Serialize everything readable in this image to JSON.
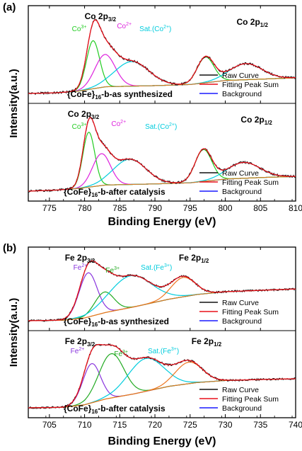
{
  "chart_data": [
    {
      "panel": "(a)",
      "type": "line",
      "xlabel": "Binding Energy (eV)",
      "ylabel": "Intensity(a.u.)",
      "xlim": [
        772,
        810
      ],
      "xticks": [
        775,
        780,
        785,
        790,
        795,
        800,
        805,
        810
      ],
      "legend_entries": [
        "Raw Curve",
        "Fitting Peak Sum",
        "Background"
      ],
      "legend_position": "bottom-right",
      "subplots": [
        {
          "label_prefix": "{CoFe}",
          "label_sub": "16",
          "label_suffix": "-b-as synthesized",
          "annotations": [
            {
              "text": "Co 2p",
              "sub": "3/2",
              "color": "#000000",
              "x": 780.0
            },
            {
              "text": "Co",
              "sup": "3+",
              "color": "#22cc22",
              "x": 778.2
            },
            {
              "text": "Co",
              "sup": "2+",
              "color": "#dd22dd",
              "x": 784.6
            },
            {
              "text": "Sat.(Co",
              "sup": "2+",
              "tail": ")",
              "color": "#00ccdd",
              "x": 787.8
            },
            {
              "text": "Co 2p",
              "sub": "1/2",
              "color": "#000000",
              "x": 801.6
            }
          ],
          "background": {
            "x": [
              772,
              776,
              779,
              783,
              790,
              795,
              800,
              805,
              810
            ],
            "y": [
              0.0,
              0.03,
              0.1,
              0.3,
              0.35,
              0.4,
              0.58,
              0.64,
              0.7
            ]
          },
          "peaks": [
            {
              "name": "Co3+",
              "center": 781.2,
              "fwhm": 2.2,
              "height": 2.15,
              "color": "#22cc22"
            },
            {
              "name": "Co2+",
              "center": 782.9,
              "fwhm": 3.4,
              "height": 1.45,
              "color": "#dd22dd"
            },
            {
              "name": "Sat.(Co2+)",
              "center": 786.7,
              "fwhm": 5.8,
              "height": 1.1,
              "color": "#00ccdd"
            },
            {
              "name": "Co 2p1/2 main",
              "center": 797.2,
              "fwhm": 2.8,
              "height": 1.15,
              "color": "#22cc22"
            },
            {
              "name": "Co 2p1/2 sat",
              "center": 802.9,
              "fwhm": 5.5,
              "height": 0.72,
              "color": "#00ccdd"
            }
          ]
        },
        {
          "label_prefix": "{CoFe}",
          "label_sub": "16",
          "label_suffix": "-b-after catalysis",
          "annotations": [
            {
              "text": "Co 2p",
              "sub": "3/2",
              "color": "#000000",
              "x": 777.6
            },
            {
              "text": "Co",
              "sup": "3+",
              "color": "#22cc22",
              "x": 778.2
            },
            {
              "text": "Co",
              "sup": "2+",
              "color": "#dd22dd",
              "x": 783.8
            },
            {
              "text": "Sat.(Co",
              "sup": "2+",
              "tail": ")",
              "color": "#00ccdd",
              "x": 788.6
            },
            {
              "text": "Co 2p",
              "sub": "1/2",
              "color": "#000000",
              "x": 802.2
            }
          ],
          "background": {
            "x": [
              772,
              776,
              779,
              783,
              790,
              795,
              800,
              805,
              810
            ],
            "y": [
              0.0,
              0.05,
              0.12,
              0.28,
              0.33,
              0.38,
              0.55,
              0.62,
              0.67
            ]
          },
          "peaks": [
            {
              "name": "Co3+",
              "center": 780.6,
              "fwhm": 2.0,
              "height": 2.5,
              "color": "#22cc22"
            },
            {
              "name": "Co2+",
              "center": 782.4,
              "fwhm": 3.0,
              "height": 1.45,
              "color": "#dd22dd"
            },
            {
              "name": "Sat.(Co2+)",
              "center": 786.4,
              "fwhm": 5.5,
              "height": 1.15,
              "color": "#00ccdd"
            },
            {
              "name": "Co 2p1/2 main",
              "center": 796.9,
              "fwhm": 2.8,
              "height": 1.45,
              "color": "#22cc22"
            },
            {
              "name": "Co 2p1/2 sat",
              "center": 802.6,
              "fwhm": 5.5,
              "height": 0.72,
              "color": "#00ccdd"
            }
          ]
        }
      ]
    },
    {
      "panel": "(b)",
      "type": "line",
      "xlabel": "Binding Energy (eV)",
      "ylabel": "Intensity(a.u.)",
      "xlim": [
        702,
        740
      ],
      "xticks": [
        705,
        710,
        715,
        720,
        725,
        730,
        735,
        740
      ],
      "legend_entries": [
        "Raw Curve",
        "Fitting Peak Sum",
        "Background"
      ],
      "legend_position": "bottom-right",
      "subplots": [
        {
          "label_prefix": "{CoFe}",
          "label_sub": "16",
          "label_suffix": "-b-as synthesized",
          "annotations": [
            {
              "text": "Fe 2p",
              "sub": "3/2",
              "color": "#000000",
              "x": 707.2
            },
            {
              "text": "Fe",
              "sup": "3+",
              "color": "#22aa22",
              "x": 713.0
            },
            {
              "text": "Sat.(Fe",
              "sup": "3+",
              "tail": ")",
              "color": "#00ccdd",
              "x": 718.0
            },
            {
              "text": "Fe 2p",
              "sub": "1/2",
              "color": "#000000",
              "x": 723.4
            },
            {
              "text": "Fe",
              "sup": "2+",
              "color": "#8833dd",
              "x": 708.4
            }
          ],
          "background": {
            "x": [
              702,
              707,
              710,
              713,
              717,
              722,
              726,
              730,
              735,
              740
            ],
            "y": [
              0.0,
              0.02,
              0.1,
              0.3,
              0.5,
              0.78,
              0.95,
              1.05,
              1.1,
              1.15
            ]
          },
          "peaks": [
            {
              "name": "Fe2+",
              "center": 710.5,
              "fwhm": 3.0,
              "height": 1.6,
              "color": "#8833dd"
            },
            {
              "name": "Fe3+",
              "center": 712.8,
              "fwhm": 3.2,
              "height": 0.75,
              "color": "#22aa22"
            },
            {
              "name": "Sat.(Fe3+)",
              "center": 716.5,
              "fwhm": 7.0,
              "height": 1.15,
              "color": "#00ccdd"
            },
            {
              "name": "Fe 2p1/2",
              "center": 724.0,
              "fwhm": 4.0,
              "height": 0.7,
              "color": "#ee7722"
            }
          ]
        },
        {
          "label_prefix": "{CoFe}",
          "label_sub": "16",
          "label_suffix": "-b-after catalysis",
          "annotations": [
            {
              "text": "Fe 2p",
              "sub": "3/2",
              "color": "#000000",
              "x": 707.2
            },
            {
              "text": "Fe",
              "sup": "3+",
              "color": "#22aa22",
              "x": 714.2
            },
            {
              "text": "Sat.(Fe",
              "sup": "3+",
              "tail": ")",
              "color": "#00ccdd",
              "x": 719.0
            },
            {
              "text": "Fe 2p",
              "sub": "1/2",
              "color": "#000000",
              "x": 725.2
            },
            {
              "text": "Fe",
              "sup": "2+",
              "color": "#8833dd",
              "x": 708.0
            }
          ],
          "background": {
            "x": [
              702,
              707,
              710,
              713,
              717,
              722,
              726,
              730,
              735,
              740
            ],
            "y": [
              0.0,
              0.02,
              0.12,
              0.35,
              0.55,
              0.85,
              1.0,
              1.08,
              1.12,
              1.15
            ]
          },
          "peaks": [
            {
              "name": "Fe2+",
              "center": 711.0,
              "fwhm": 3.0,
              "height": 1.55,
              "color": "#8833dd"
            },
            {
              "name": "Fe3+",
              "center": 713.8,
              "fwhm": 4.2,
              "height": 1.75,
              "color": "#22aa22"
            },
            {
              "name": "Sat.(Fe3+)",
              "center": 718.7,
              "fwhm": 6.0,
              "height": 1.3,
              "color": "#00ccdd"
            },
            {
              "name": "Fe 2p1/2",
              "center": 724.8,
              "fwhm": 4.5,
              "height": 0.85,
              "color": "#ee7722"
            }
          ]
        }
      ]
    }
  ],
  "colors": {
    "raw_curve": "#000000",
    "fitting_sum": "#e8101a",
    "background": "#1a1aff",
    "legend_raw": "#111111",
    "legend_fit": "#e8101a",
    "legend_bg": "#1a1aff"
  }
}
